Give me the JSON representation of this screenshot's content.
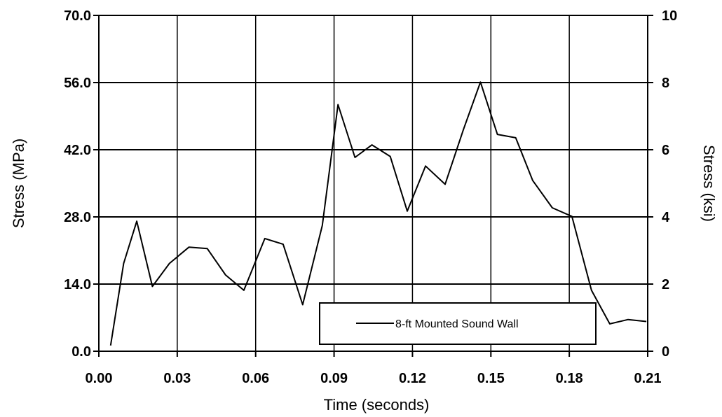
{
  "chart_data": {
    "type": "line",
    "xlabel": "Time (seconds)",
    "ylabel": "Stress (MPa)",
    "y2label": "Stress (ksi)",
    "xlim": [
      0.0,
      0.21
    ],
    "ylim": [
      0.0,
      70.0
    ],
    "y2lim": [
      0,
      10
    ],
    "x_ticks": [
      "0.00",
      "0.03",
      "0.06",
      "0.09",
      "0.12",
      "0.15",
      "0.18",
      "0.21"
    ],
    "y_ticks": [
      "0.0",
      "14.0",
      "28.0",
      "42.0",
      "56.0",
      "70.0"
    ],
    "y2_ticks": [
      "0",
      "2",
      "4",
      "6",
      "8",
      "10"
    ],
    "grid": true,
    "legend_position": "bottom-right",
    "series": [
      {
        "name": "8-ft Mounted Sound Wall",
        "color": "#000000",
        "x": [
          0.0045,
          0.0095,
          0.0145,
          0.0205,
          0.027,
          0.0345,
          0.0415,
          0.0485,
          0.0555,
          0.0635,
          0.0705,
          0.078,
          0.0855,
          0.0915,
          0.098,
          0.1045,
          0.1115,
          0.118,
          0.125,
          0.1325,
          0.1395,
          0.146,
          0.1525,
          0.1595,
          0.166,
          0.1735,
          0.181,
          0.1885,
          0.1955,
          0.2025,
          0.2095
        ],
        "y": [
          1.2,
          18.3,
          27.1,
          13.5,
          18.3,
          21.7,
          21.4,
          15.9,
          12.7,
          23.5,
          22.3,
          9.7,
          26.2,
          51.4,
          40.4,
          43.0,
          40.6,
          29.2,
          38.6,
          34.8,
          46.2,
          56.1,
          45.2,
          44.5,
          35.6,
          29.9,
          28.1,
          12.7,
          5.7,
          6.6,
          6.2
        ]
      }
    ]
  }
}
